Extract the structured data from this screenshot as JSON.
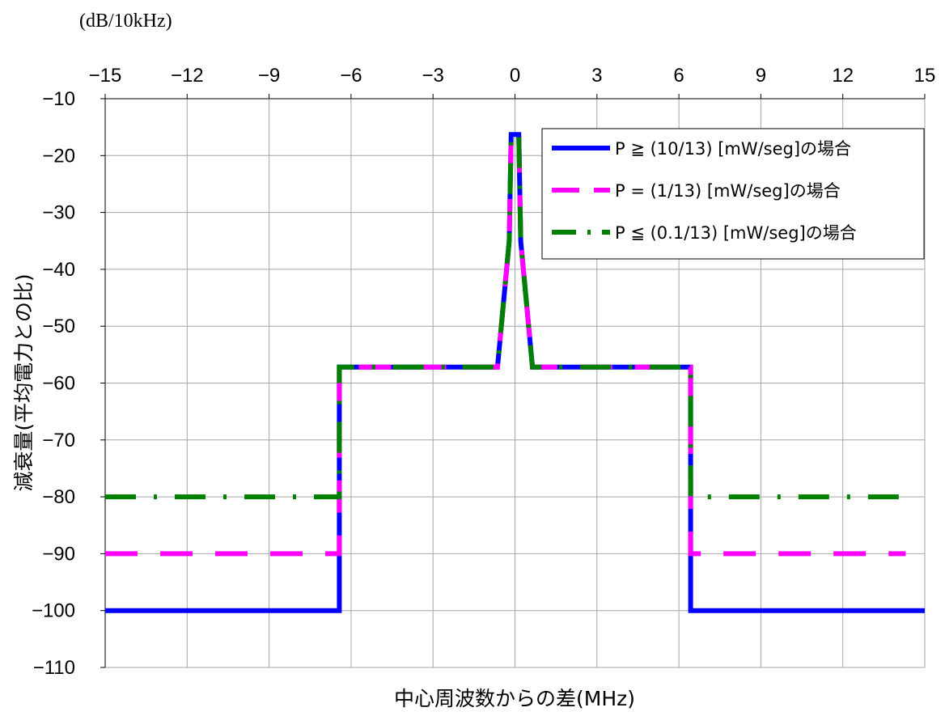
{
  "chart_data": {
    "type": "line",
    "unit_label": "(dB/10kHz)",
    "xlabel": "中心周波数からの差(MHz)",
    "ylabel": "減衰量(平均電力との比)",
    "xlim": [
      -15,
      15
    ],
    "ylim": [
      -110,
      -10
    ],
    "xticks": [
      -15,
      -12,
      -9,
      -6,
      -3,
      0,
      3,
      6,
      9,
      12,
      15
    ],
    "yticks": [
      -10,
      -20,
      -30,
      -40,
      -50,
      -60,
      -70,
      -80,
      -90,
      -100,
      -110
    ],
    "xtick_labels": [
      "−15",
      "−12",
      "−9",
      "−6",
      "−3",
      "0",
      "3",
      "6",
      "9",
      "12",
      "15"
    ],
    "ytick_labels": [
      "−10",
      "−20",
      "−30",
      "−40",
      "−50",
      "−60",
      "−70",
      "−80",
      "−90",
      "−100",
      "−110"
    ],
    "grid": true,
    "legend_position": "top-right",
    "series": [
      {
        "name": "P ≧ (10/13) [mW/seg]の場合",
        "color": "#0000ff",
        "style": "solid",
        "x": [
          -15,
          -6.43,
          -6.43,
          -0.64,
          -0.21,
          -0.14,
          0.14,
          0.21,
          0.64,
          6.43,
          6.43,
          15
        ],
        "y": [
          -100,
          -100,
          -57.2,
          -57.2,
          -35,
          -16.3,
          -16.3,
          -35,
          -57.2,
          -57.2,
          -100,
          -100
        ]
      },
      {
        "name": "P = (1/13) [mW/seg]の場合",
        "color": "#ff00ff",
        "style": "dashed",
        "x": [
          -15,
          -6.43,
          -6.43,
          -0.64,
          -0.21,
          -0.14,
          0.14,
          0.21,
          0.64,
          6.43,
          6.43,
          14.3
        ],
        "y": [
          -90,
          -90,
          -57.2,
          -57.2,
          -35,
          -16.3,
          -16.3,
          -35,
          -57.2,
          -57.2,
          -90,
          -90
        ]
      },
      {
        "name": "P ≦ (0.1/13) [mW/seg]の場合",
        "color": "#008000",
        "style": "dashdot",
        "x": [
          -15,
          -6.43,
          -6.43,
          -0.64,
          -0.21,
          -0.14,
          0.14,
          0.21,
          0.64,
          6.43,
          6.43,
          14.3
        ],
        "y": [
          -80,
          -80,
          -57.2,
          -57.2,
          -35,
          -16.3,
          -16.3,
          -35,
          -57.2,
          -57.2,
          -80,
          -80
        ]
      }
    ]
  }
}
